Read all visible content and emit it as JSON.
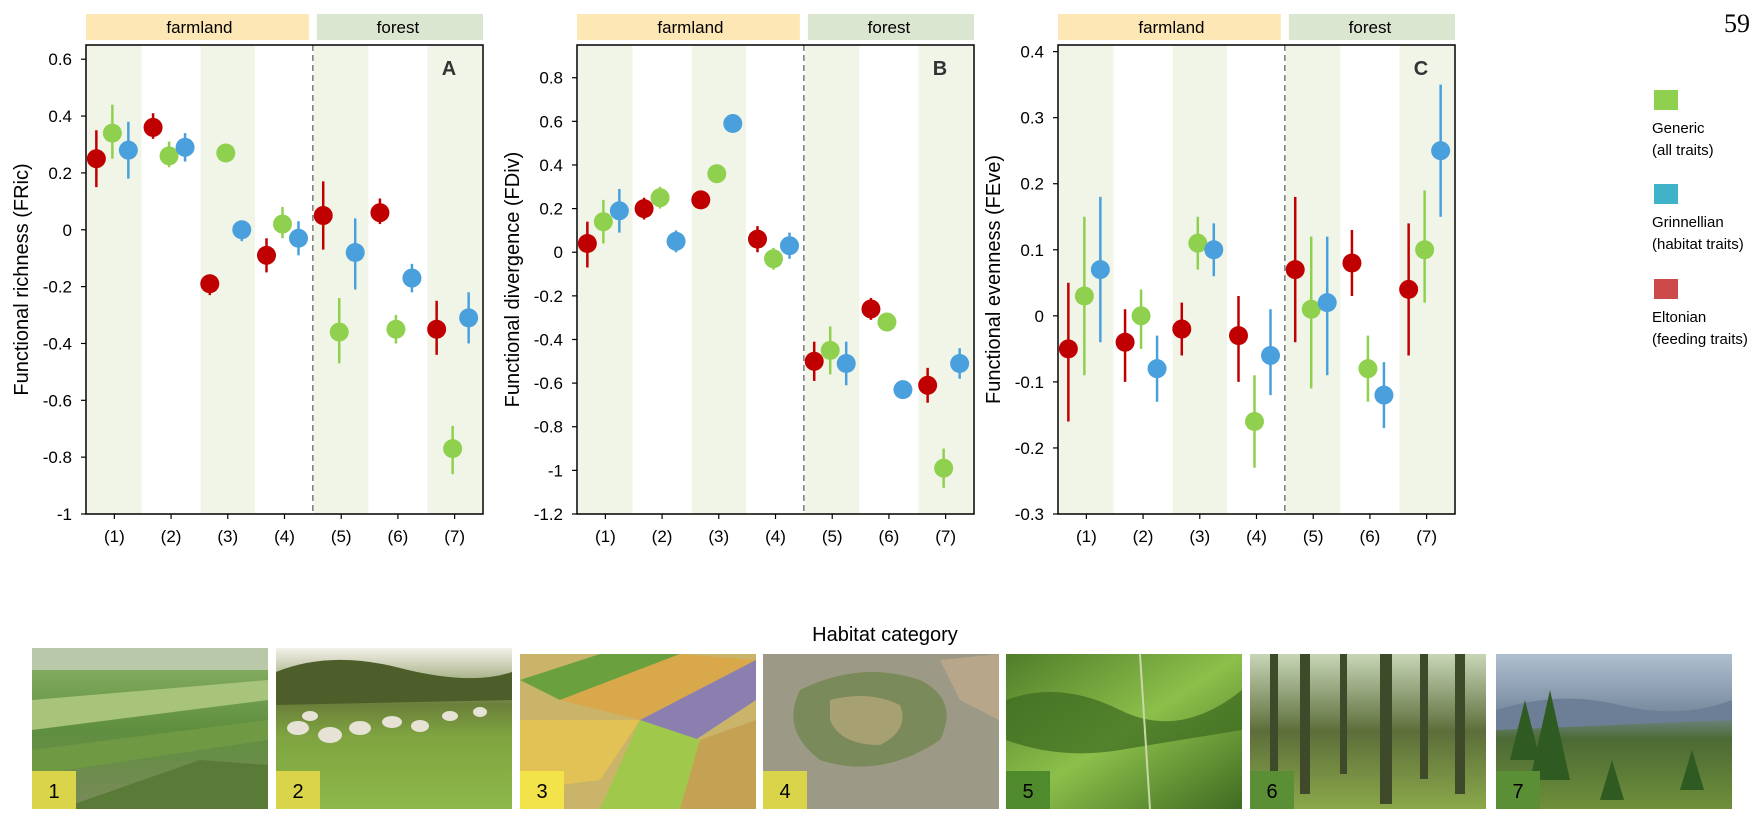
{
  "page_number": "59",
  "shared_xlabel": "Habitat category",
  "group_headers": {
    "farmland": "farmland",
    "forest": "forest"
  },
  "colors": {
    "Generic": "#8fd14f",
    "Grinnellian": "#4aa0dd",
    "Eltonian": "#c00000",
    "farmland_header": "#fde7b5",
    "forest_header": "#dbe6d0",
    "shade": "#f1f5e8"
  },
  "legend": [
    {
      "series": "Generic",
      "line1": "Generic",
      "line2": "(all traits)",
      "swatch": "#8fd14f"
    },
    {
      "series": "Grinnellian",
      "line1": "Grinnellian",
      "line2": "(habitat traits)",
      "swatch": "#41b3c9"
    },
    {
      "series": "Eltonian",
      "line1": "Eltonian",
      "line2": "(feeding traits)",
      "swatch": "#cd4a4a"
    }
  ],
  "chart_data": [
    {
      "type": "scatter",
      "panel": "A",
      "ylabel": "Functional richness (FRic)",
      "xlabel": "Habitat category",
      "categories": [
        "(1)",
        "(2)",
        "(3)",
        "(4)",
        "(5)",
        "(6)",
        "(7)"
      ],
      "ylim": [
        -1,
        0.65
      ],
      "yticks": [
        -1,
        -0.8,
        -0.6,
        -0.4,
        -0.2,
        0,
        0.2,
        0.4,
        0.6
      ],
      "ytick_labels": [
        "-1",
        "-0.8",
        "-0.6",
        "-0.4",
        "-0.2",
        "0",
        "0.2",
        "0.4",
        "0.6"
      ],
      "series_order": [
        "Eltonian",
        "Generic",
        "Grinnellian"
      ],
      "series": [
        {
          "series": "Eltonian",
          "values": [
            0.25,
            0.36,
            -0.19,
            -0.09,
            0.05,
            0.06,
            -0.35
          ],
          "lower": [
            0.15,
            0.32,
            -0.23,
            -0.15,
            -0.07,
            0.02,
            -0.44
          ],
          "upper": [
            0.35,
            0.41,
            -0.16,
            -0.03,
            0.17,
            0.11,
            -0.25
          ]
        },
        {
          "series": "Generic",
          "values": [
            0.34,
            0.26,
            0.27,
            0.02,
            -0.36,
            -0.35,
            -0.77
          ],
          "lower": [
            0.25,
            0.22,
            0.24,
            -0.03,
            -0.47,
            -0.4,
            -0.86
          ],
          "upper": [
            0.44,
            0.31,
            0.3,
            0.08,
            -0.24,
            -0.3,
            -0.69
          ]
        },
        {
          "series": "Grinnellian",
          "values": [
            0.28,
            0.29,
            0.0,
            -0.03,
            -0.08,
            -0.17,
            -0.31
          ],
          "lower": [
            0.18,
            0.24,
            -0.04,
            -0.09,
            -0.21,
            -0.22,
            -0.4
          ],
          "upper": [
            0.38,
            0.34,
            0.03,
            0.03,
            0.04,
            -0.12,
            -0.22
          ]
        }
      ]
    },
    {
      "type": "scatter",
      "panel": "B",
      "ylabel": "Functional divergence (FDiv)",
      "xlabel": "Habitat category",
      "categories": [
        "(1)",
        "(2)",
        "(3)",
        "(4)",
        "(5)",
        "(6)",
        "(7)"
      ],
      "ylim": [
        -1.2,
        0.95
      ],
      "yticks": [
        -1.2,
        -1,
        -0.8,
        -0.6,
        -0.4,
        -0.2,
        0,
        0.2,
        0.4,
        0.6,
        0.8
      ],
      "ytick_labels": [
        "-1.2",
        "-1",
        "-0.8",
        "-0.6",
        "-0.4",
        "-0.2",
        "0",
        "0.2",
        "0.4",
        "0.6",
        "0.8"
      ],
      "series_order": [
        "Eltonian",
        "Generic",
        "Grinnellian"
      ],
      "series": [
        {
          "series": "Eltonian",
          "values": [
            0.04,
            0.2,
            0.24,
            0.06,
            -0.5,
            -0.26,
            -0.61
          ],
          "lower": [
            -0.07,
            0.15,
            0.21,
            0.0,
            -0.59,
            -0.31,
            -0.69
          ],
          "upper": [
            0.14,
            0.25,
            0.28,
            0.12,
            -0.41,
            -0.21,
            -0.53
          ]
        },
        {
          "series": "Generic",
          "values": [
            0.14,
            0.25,
            0.36,
            -0.03,
            -0.45,
            -0.32,
            -0.99
          ],
          "lower": [
            0.04,
            0.2,
            0.34,
            -0.08,
            -0.56,
            -0.35,
            -1.08
          ],
          "upper": [
            0.24,
            0.3,
            0.39,
            0.02,
            -0.34,
            -0.29,
            -0.9
          ]
        },
        {
          "series": "Grinnellian",
          "values": [
            0.19,
            0.05,
            0.59,
            0.03,
            -0.51,
            -0.63,
            -0.51
          ],
          "lower": [
            0.09,
            0.0,
            0.57,
            -0.03,
            -0.61,
            -0.66,
            -0.58
          ],
          "upper": [
            0.29,
            0.1,
            0.62,
            0.09,
            -0.41,
            -0.6,
            -0.44
          ]
        }
      ]
    },
    {
      "type": "scatter",
      "panel": "C",
      "ylabel": "Functional evenness (FEve)",
      "xlabel": "Habitat category",
      "categories": [
        "(1)",
        "(2)",
        "(3)",
        "(4)",
        "(5)",
        "(6)",
        "(7)"
      ],
      "ylim": [
        -0.3,
        0.41
      ],
      "yticks": [
        -0.3,
        -0.2,
        -0.1,
        0,
        0.1,
        0.2,
        0.3,
        0.4
      ],
      "ytick_labels": [
        "-0.3",
        "-0.2",
        "-0.1",
        "0",
        "0.1",
        "0.2",
        "0.3",
        "0.4"
      ],
      "series_order": [
        "Eltonian",
        "Generic",
        "Grinnellian"
      ],
      "series": [
        {
          "series": "Eltonian",
          "values": [
            -0.05,
            -0.04,
            -0.02,
            -0.03,
            0.07,
            0.08,
            0.04
          ],
          "lower": [
            -0.16,
            -0.1,
            -0.06,
            -0.1,
            -0.04,
            0.03,
            -0.06
          ],
          "upper": [
            0.05,
            0.01,
            0.02,
            0.03,
            0.18,
            0.13,
            0.14
          ]
        },
        {
          "series": "Generic",
          "values": [
            0.03,
            0.0,
            0.11,
            -0.16,
            0.01,
            -0.08,
            0.1
          ],
          "lower": [
            -0.09,
            -0.05,
            0.07,
            -0.23,
            -0.11,
            -0.13,
            0.02
          ],
          "upper": [
            0.15,
            0.04,
            0.15,
            -0.09,
            0.12,
            -0.03,
            0.19
          ]
        },
        {
          "series": "Grinnellian",
          "values": [
            0.07,
            -0.08,
            0.1,
            -0.06,
            0.02,
            -0.12,
            0.25
          ],
          "lower": [
            -0.04,
            -0.13,
            0.06,
            -0.12,
            -0.09,
            -0.17,
            0.15
          ],
          "upper": [
            0.18,
            -0.03,
            0.14,
            0.01,
            0.12,
            -0.07,
            0.35
          ]
        }
      ]
    }
  ],
  "photos": [
    {
      "number": "1",
      "description_icon": "farmland-landscape-photo"
    },
    {
      "number": "2",
      "description_icon": "pasture-sheep-photo"
    },
    {
      "number": "3",
      "description_icon": "crop-fields-photo"
    },
    {
      "number": "4",
      "description_icon": "aerial-mosaic-photo"
    },
    {
      "number": "5",
      "description_icon": "forest-aerial-photo"
    },
    {
      "number": "6",
      "description_icon": "beech-forest-photo"
    },
    {
      "number": "7",
      "description_icon": "conifer-forest-photo"
    }
  ]
}
